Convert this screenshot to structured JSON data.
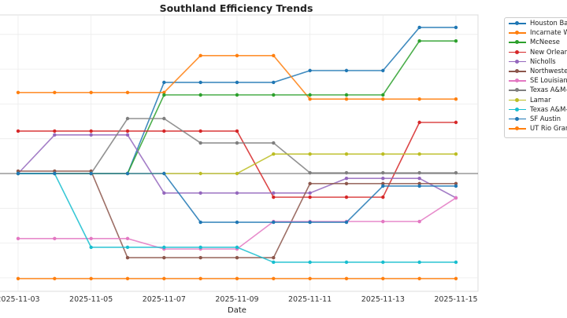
{
  "chart_data": {
    "type": "line",
    "title": "Southland Efficiency Trends",
    "xlabel": "Date",
    "ylabel": "",
    "x": [
      "2025-11-03",
      "2025-11-04",
      "2025-11-05",
      "2025-11-06",
      "2025-11-07",
      "2025-11-08",
      "2025-11-09",
      "2025-11-10",
      "2025-11-11",
      "2025-11-12",
      "2025-11-13",
      "2025-11-14",
      "2025-11-15"
    ],
    "xtick_labels": [
      "2025-11-03",
      "2025-11-05",
      "2025-11-07",
      "2025-11-09",
      "2025-11-11",
      "2025-11-13",
      "2025-11-15"
    ],
    "ylim": [
      -3.4,
      4.6
    ],
    "grid": true,
    "zero_line": true,
    "legend_placement": "outside-right",
    "series": [
      {
        "name": "Houston Bap",
        "color": "#1f77b4",
        "values": [
          0,
          0,
          0,
          0,
          2.62,
          2.62,
          2.62,
          2.62,
          2.96,
          2.96,
          2.96,
          4.2,
          4.2
        ]
      },
      {
        "name": "Incarnate Wo",
        "color": "#ff7f0e",
        "values": [
          2.33,
          2.33,
          2.33,
          2.33,
          2.33,
          3.39,
          3.39,
          3.39,
          2.14,
          2.14,
          2.14,
          2.14,
          2.14
        ]
      },
      {
        "name": "McNeese",
        "color": "#2ca02c",
        "values": [
          0,
          0,
          0,
          0,
          2.26,
          2.26,
          2.26,
          2.26,
          2.26,
          2.26,
          2.26,
          3.81,
          3.81
        ]
      },
      {
        "name": "New Orleans",
        "color": "#d62728",
        "values": [
          1.22,
          1.22,
          1.22,
          1.22,
          1.22,
          1.22,
          1.22,
          -0.68,
          -0.68,
          -0.68,
          -0.68,
          1.47,
          1.47
        ]
      },
      {
        "name": "Nicholls",
        "color": "#9467bd",
        "values": [
          0,
          1.11,
          1.11,
          1.11,
          -0.56,
          -0.56,
          -0.56,
          -0.56,
          -0.56,
          -0.14,
          -0.14,
          -0.14,
          -0.7
        ]
      },
      {
        "name": "Northwestern",
        "color": "#8c564b",
        "values": [
          0.07,
          0.07,
          0.07,
          -2.42,
          -2.42,
          -2.42,
          -2.42,
          -2.42,
          -0.29,
          -0.29,
          -0.29,
          -0.29,
          -0.29
        ]
      },
      {
        "name": "SE Louisiana",
        "color": "#e377c2",
        "values": [
          -1.87,
          -1.87,
          -1.87,
          -1.87,
          -2.17,
          -2.17,
          -2.17,
          -1.38,
          -1.38,
          -1.38,
          -1.38,
          -1.38,
          -0.7
        ]
      },
      {
        "name": "Texas A&M-C",
        "color": "#7f7f7f",
        "values": [
          0,
          0,
          0,
          1.58,
          1.58,
          0.88,
          0.88,
          0.88,
          0.02,
          0.02,
          0.02,
          0.02,
          0.02
        ]
      },
      {
        "name": "Lamar",
        "color": "#bcbd22",
        "values": [
          0,
          0,
          0,
          0,
          0,
          0,
          0,
          0.56,
          0.56,
          0.56,
          0.56,
          0.56,
          0.56
        ]
      },
      {
        "name": "Texas A&M-C",
        "color": "#17becf",
        "values": [
          0,
          0,
          -2.12,
          -2.12,
          -2.12,
          -2.12,
          -2.12,
          -2.55,
          -2.55,
          -2.55,
          -2.55,
          -2.55,
          -2.55
        ]
      },
      {
        "name": "SF Austin",
        "color": "#1f77b4",
        "values": [
          0,
          0,
          0,
          0,
          0,
          -1.4,
          -1.4,
          -1.4,
          -1.4,
          -1.4,
          -0.36,
          -0.36,
          -0.36
        ]
      },
      {
        "name": "UT Rio Grand",
        "color": "#ff7f0e",
        "values": [
          -3.02,
          -3.02,
          -3.02,
          -3.02,
          -3.02,
          -3.02,
          -3.02,
          -3.02,
          -3.02,
          -3.02,
          -3.02,
          -3.02,
          -3.02
        ]
      }
    ]
  }
}
